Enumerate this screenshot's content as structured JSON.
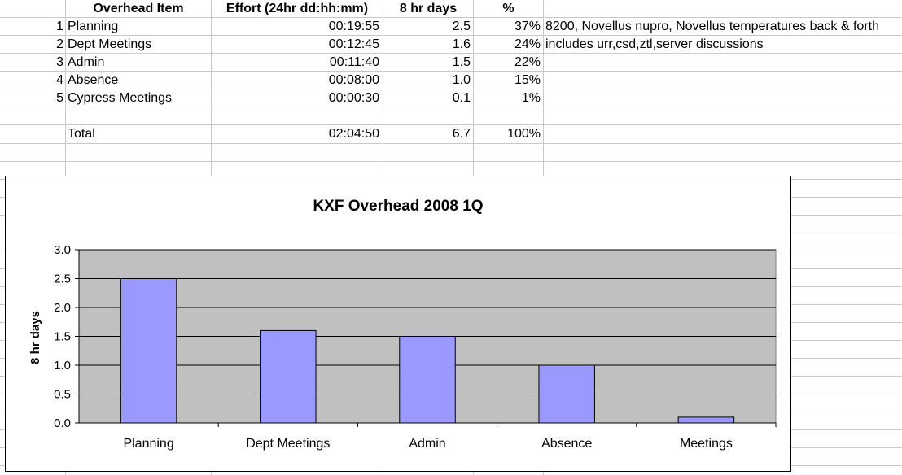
{
  "table": {
    "headers": [
      "Overhead Item",
      "Effort (24hr dd:hh:mm)",
      "8 hr days",
      "%"
    ],
    "rows": [
      {
        "n": "1",
        "item": "Planning",
        "effort": "00:19:55",
        "days": "2.5",
        "pct": "37%",
        "note": "8200, Novellus nupro, Novellus temperatures back & forth"
      },
      {
        "n": "2",
        "item": "Dept Meetings",
        "effort": "00:12:45",
        "days": "1.6",
        "pct": "24%",
        "note": "includes urr,csd,ztl,server discussions"
      },
      {
        "n": "3",
        "item": "Admin",
        "effort": "00:11:40",
        "days": "1.5",
        "pct": "22%",
        "note": ""
      },
      {
        "n": "4",
        "item": "Absence",
        "effort": "00:08:00",
        "days": "1.0",
        "pct": "15%",
        "note": ""
      },
      {
        "n": "5",
        "item": "Cypress Meetings",
        "effort": "00:00:30",
        "days": "0.1",
        "pct": "1%",
        "note": ""
      }
    ],
    "total": {
      "label": "Total",
      "effort": "02:04:50",
      "days": "6.7",
      "pct": "100%"
    }
  },
  "chart_data": {
    "type": "bar",
    "title": "KXF Overhead 2008 1Q",
    "xlabel": "",
    "ylabel": "8 hr days",
    "categories": [
      "Planning",
      "Dept Meetings",
      "Admin",
      "Absence",
      "Meetings"
    ],
    "values": [
      2.5,
      1.6,
      1.5,
      1.0,
      0.1
    ],
    "ylim": [
      0,
      3
    ],
    "yticks": [
      "0.0",
      "0.5",
      "1.0",
      "1.5",
      "2.0",
      "2.5",
      "3.0"
    ],
    "grid": true,
    "legend": "none",
    "colors": {
      "bar": "#9999ff",
      "plot_bg": "#c0c0c0",
      "bar_border": "#000000"
    }
  }
}
